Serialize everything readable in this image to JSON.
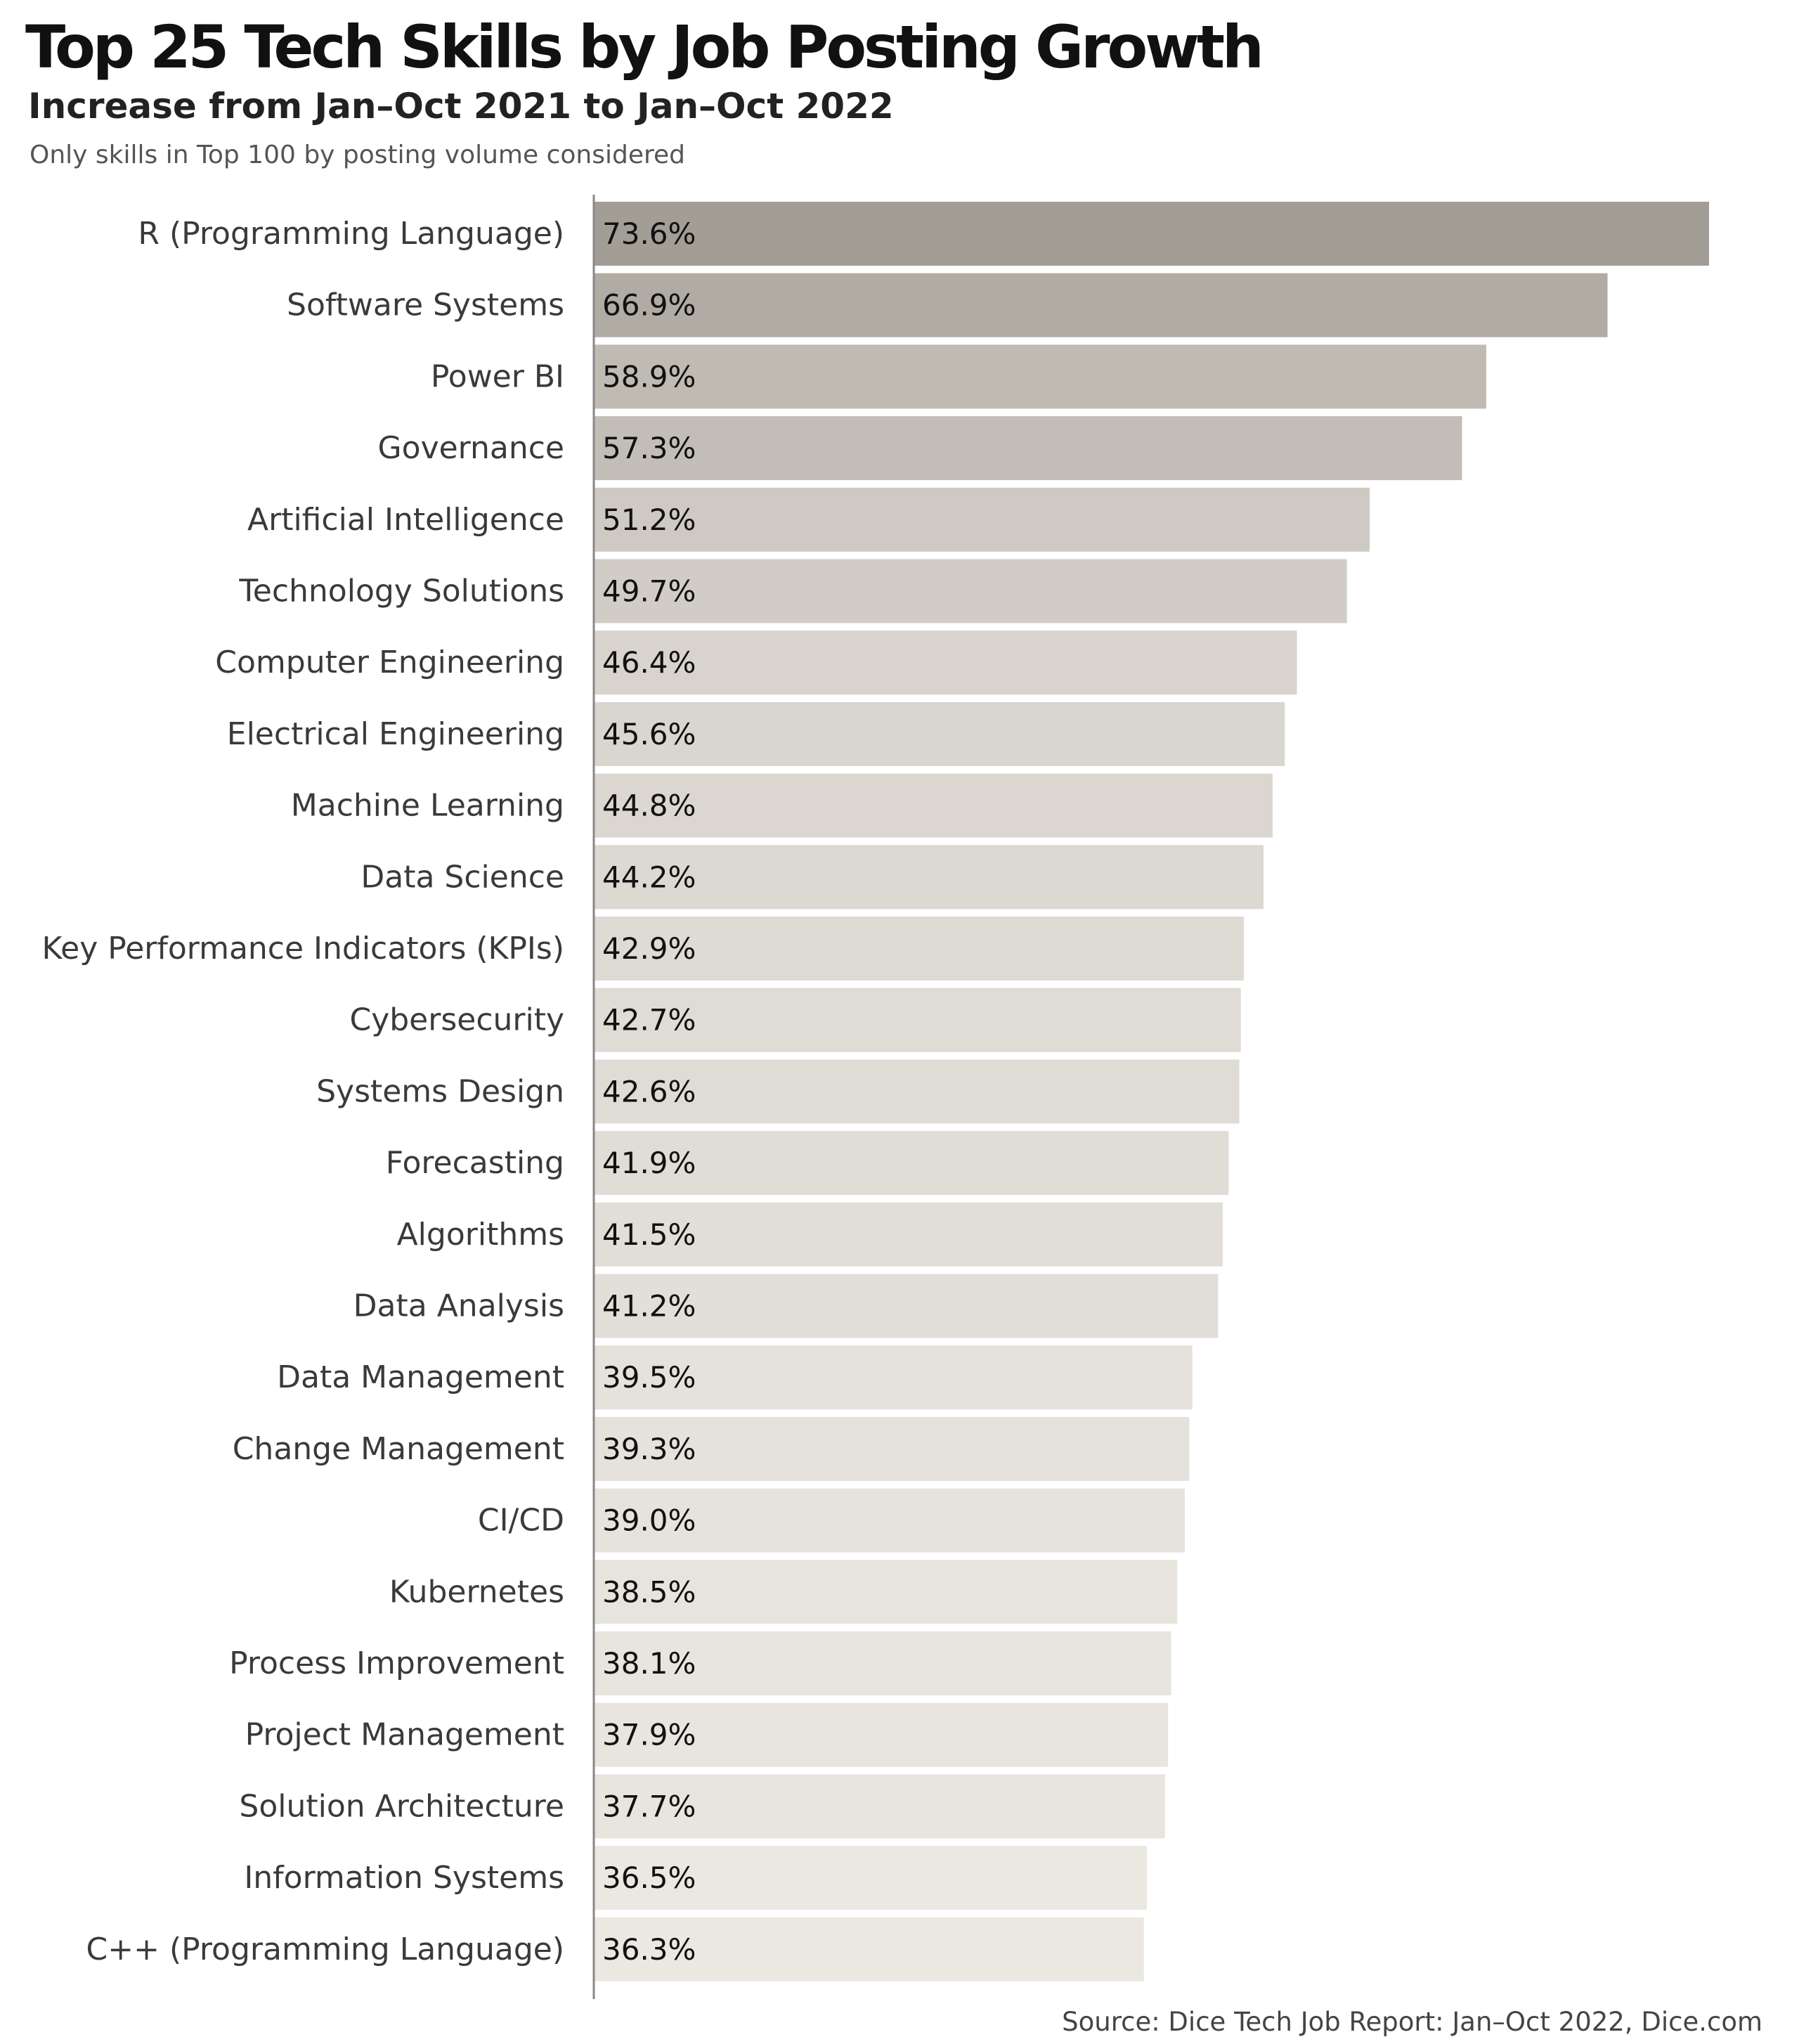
{
  "title": "Top 25 Tech Skills by Job Posting Growth",
  "subtitle": "Increase from Jan–Oct 2021 to Jan–Oct 2022",
  "note": "Only skills in Top 100 by posting volume considered",
  "source": "Source: Dice Tech Job Report: Jan–Oct 2022, Dice.com",
  "chart_data": {
    "type": "bar",
    "orientation": "horizontal",
    "title": "Top 25 Tech Skills by Job Posting Growth",
    "subtitle": "Increase from Jan–Oct 2021 to Jan–Oct 2022",
    "xlabel": "",
    "ylabel": "",
    "unit": "%",
    "grid": false,
    "legend": "none",
    "xlim": [
      0,
      75
    ],
    "categories": [
      "R (Programming Language)",
      "Software Systems",
      "Power BI",
      "Governance",
      "Artificial Intelligence",
      "Technology Solutions",
      "Computer Engineering",
      "Electrical Engineering",
      "Machine Learning",
      "Data Science",
      "Key Performance Indicators (KPIs)",
      "Cybersecurity",
      "Systems Design",
      "Forecasting",
      "Algorithms",
      "Data Analysis",
      "Data Management",
      "Change Management",
      "CI/CD",
      "Kubernetes",
      "Process Improvement",
      "Project Management",
      "Solution Architecture",
      "Information Systems",
      "C++ (Programming Language)"
    ],
    "values": [
      73.6,
      66.9,
      58.9,
      57.3,
      51.2,
      49.7,
      46.4,
      45.6,
      44.8,
      44.2,
      42.9,
      42.7,
      42.6,
      41.9,
      41.5,
      41.2,
      39.5,
      39.3,
      39.0,
      38.5,
      38.1,
      37.9,
      37.7,
      36.5,
      36.3
    ],
    "value_labels": [
      "73.6%",
      "66.9%",
      "58.9%",
      "57.3%",
      "51.2%",
      "49.7%",
      "46.4%",
      "45.6%",
      "44.8%",
      "44.2%",
      "42.9%",
      "42.7%",
      "42.6%",
      "41.9%",
      "41.5%",
      "41.2%",
      "39.5%",
      "39.3%",
      "39.0%",
      "38.5%",
      "38.1%",
      "37.9%",
      "37.7%",
      "36.5%",
      "36.3%"
    ],
    "colors": {
      "bar_high": "#a39e95",
      "bar_low": "#ebe8e2",
      "axis": "#888888"
    }
  }
}
